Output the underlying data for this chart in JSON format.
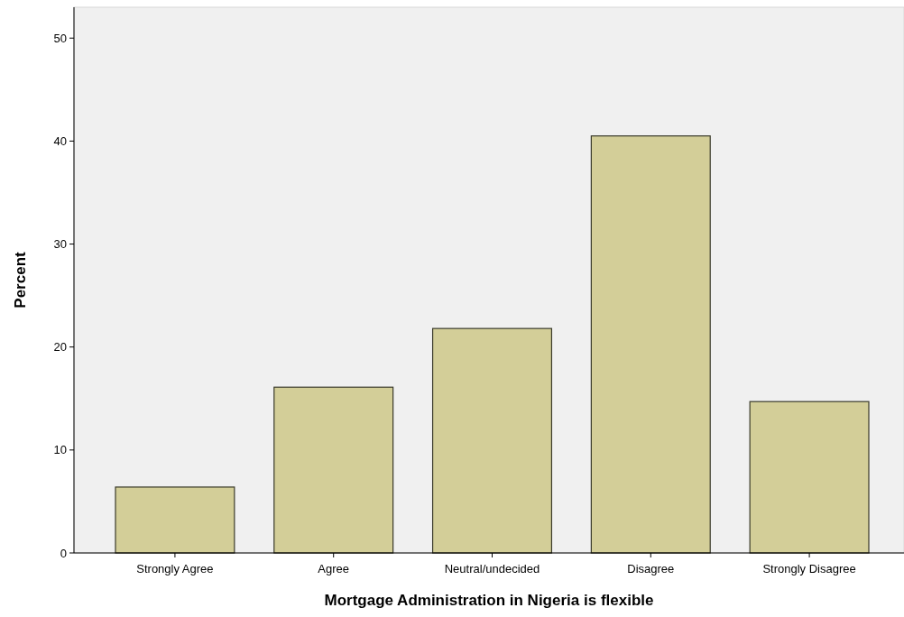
{
  "chart_data": {
    "type": "bar",
    "xlabel": "Mortgage Administration in Nigeria is flexible",
    "ylabel": "Percent",
    "categories": [
      "Strongly Agree",
      "Agree",
      "Neutral/undecided",
      "Disagree",
      "Strongly Disagree"
    ],
    "values": [
      6.4,
      16.1,
      21.8,
      40.5,
      14.7
    ],
    "color": "#d3ce98",
    "ylim": [
      0,
      53
    ],
    "yticks": [
      0,
      10,
      20,
      30,
      40,
      50
    ],
    "grid": false
  }
}
